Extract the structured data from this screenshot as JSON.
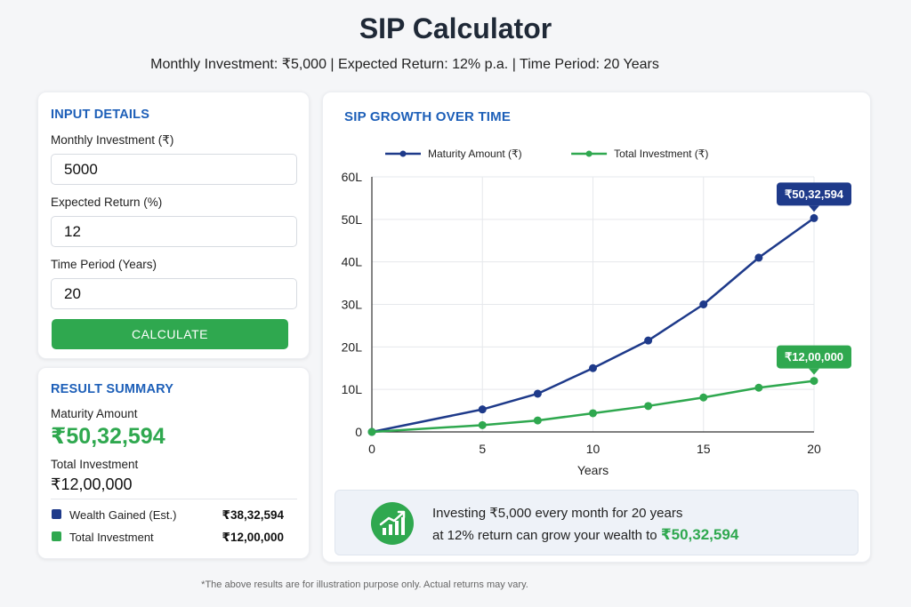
{
  "header": {
    "title": "SIP Calculator",
    "subtitle": "Monthly Investment: ₹5,000  |  Expected Return: 12% p.a.  |  Time Period: 20 Years"
  },
  "inputs": {
    "heading": "INPUT DETAILS",
    "monthly_label": "Monthly Investment (₹)",
    "monthly_value": "5000",
    "return_label": "Expected Return (%)",
    "return_value": "12",
    "period_label": "Time Period (Years)",
    "period_value": "20",
    "calculate_label": "CALCULATE"
  },
  "results": {
    "heading": "RESULT SUMMARY",
    "maturity_label": "Maturity Amount",
    "maturity_value": "₹50,32,594",
    "total_label": "Total Investment",
    "total_value": "₹12,00,000",
    "legend": [
      {
        "label": "Wealth Gained (Est.)",
        "value": "₹38,32,594",
        "color": "#1e3a8a"
      },
      {
        "label": "Total Investment",
        "value": "₹12,00,000",
        "color": "#2fa84f"
      }
    ]
  },
  "chart_data": {
    "type": "line",
    "title": "SIP GROWTH OVER TIME",
    "xlabel": "Years",
    "ylabel": "",
    "x_ticks": [
      "0",
      "5",
      "10",
      "15",
      "20"
    ],
    "y_ticks": [
      "0",
      "10L",
      "20L",
      "30L",
      "40L",
      "50L",
      "60L"
    ],
    "xlim": [
      0,
      20
    ],
    "ylim": [
      0,
      60
    ],
    "y_unit": "lakh ₹",
    "grid": true,
    "legend_position": "top-left",
    "series": [
      {
        "name": "Maturity Amount (₹)",
        "color": "#1e3a8a",
        "points": [
          [
            0,
            0
          ],
          [
            5,
            5.3
          ],
          [
            7.5,
            9.0
          ],
          [
            10,
            15.0
          ],
          [
            12.5,
            21.5
          ],
          [
            15,
            30.0
          ],
          [
            17.5,
            41.0
          ],
          [
            20,
            50.3
          ]
        ]
      },
      {
        "name": "Total Investment (₹)",
        "color": "#2fa84f",
        "points": [
          [
            0,
            0
          ],
          [
            5,
            1.6
          ],
          [
            7.5,
            2.7
          ],
          [
            10,
            4.4
          ],
          [
            12.5,
            6.1
          ],
          [
            15,
            8.1
          ],
          [
            17.5,
            10.4
          ],
          [
            20,
            12.0
          ]
        ]
      }
    ],
    "annotations": [
      {
        "series": "Maturity Amount (₹)",
        "text": "₹50,32,594",
        "color": "#1e3a8a"
      },
      {
        "series": "Total Investment (₹)",
        "text": "₹12,00,000",
        "color": "#2fa84f"
      }
    ]
  },
  "info": {
    "icon": "growth-chart-icon",
    "line1": "Investing ₹5,000 every month for 20 years",
    "line2_prefix": "at 12% return can grow your wealth to ",
    "line2_highlight": "₹50,32,594"
  },
  "footnote": "*The above results are for illustration purpose only. Actual returns may vary."
}
